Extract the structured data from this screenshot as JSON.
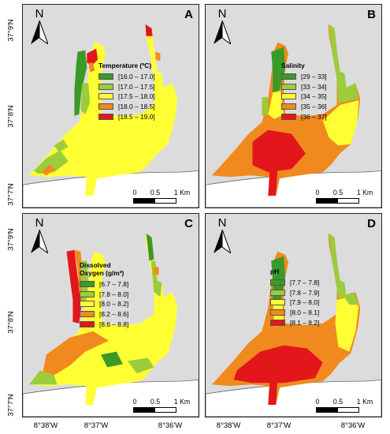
{
  "colors": {
    "land": "#dcdcdc",
    "dark_green": "#3a9a28",
    "light_green": "#9ccc3c",
    "yellow": "#ffff33",
    "orange": "#f08a1e",
    "red": "#e3161b"
  },
  "panels": [
    {
      "letter": "A",
      "legend_title": "Temperature (ºC)",
      "classes": [
        "[16.0 – 17.0]",
        "[17.0 – 17.5]",
        "[17.5 – 18.0]",
        "[18.0 – 18.5]",
        "[18.5 – 19.0]"
      ]
    },
    {
      "letter": "B",
      "legend_title": "Salinity",
      "classes": [
        "[29 – 33]",
        "[33 – 34]",
        "[34 – 35]",
        "[35 – 36]",
        "[36 – 37]"
      ]
    },
    {
      "letter": "C",
      "legend_title": "Dissolved Oxygen (g/m³)",
      "legend_title_line1": "Dissolved",
      "legend_title_line2": "Oxygen (g/m³)",
      "classes": [
        "[6.7 – 7.8]",
        "[7.8 – 8.0]",
        "[8.0 – 8.2]",
        "[8.2 – 8.6]",
        "[8.6 – 8.8]"
      ]
    },
    {
      "letter": "D",
      "legend_title": "pH",
      "classes": [
        "[7.7 – 7.8]",
        "[7.8 – 7.9]",
        "[7.9 – 8.0]",
        "[8.0 – 8.1]",
        "[8.1 – 8.2]"
      ]
    }
  ],
  "north_label": "N",
  "scale": {
    "labels": [
      "0",
      "0.5",
      "1 Km"
    ]
  },
  "lat_labels": [
    "37°9'N",
    "37°8'N",
    "37°7'N"
  ],
  "lon_labels": [
    "8°38'W",
    "8°37'W",
    "8°36'W"
  ]
}
